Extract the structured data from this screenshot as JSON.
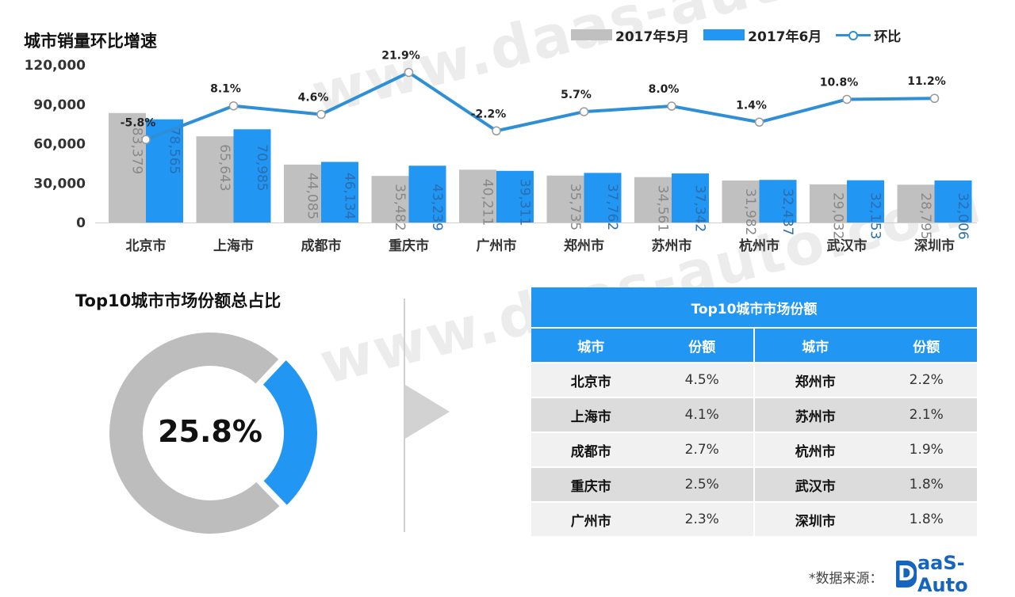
{
  "watermark": "www.daas-auto.com",
  "chart_data": [
    {
      "type": "bar",
      "title": "城市销量环比增速",
      "categories": [
        "北京市",
        "上海市",
        "成都市",
        "重庆市",
        "广州市",
        "郑州市",
        "苏州市",
        "杭州市",
        "武汉市",
        "深圳市"
      ],
      "series": [
        {
          "name": "2017年5月",
          "type": "bar",
          "color": "#c0c0c0",
          "values": [
            83379,
            65643,
            44085,
            35482,
            40211,
            35735,
            34561,
            31982,
            29032,
            28795
          ],
          "labels": [
            "83,379",
            "65,643",
            "44,085",
            "35,482",
            "40,211",
            "35,735",
            "34,561",
            "31,982",
            "29,032",
            "28,795"
          ]
        },
        {
          "name": "2017年6月",
          "type": "bar",
          "color": "#2196f3",
          "values": [
            78565,
            70985,
            46134,
            43239,
            39311,
            37762,
            37342,
            32437,
            32153,
            32006
          ],
          "labels": [
            "78,565",
            "70,985",
            "46,134",
            "43,239",
            "39,311",
            "37,762",
            "37,342",
            "32,437",
            "32,153",
            "32,006"
          ]
        },
        {
          "name": "环比",
          "type": "line",
          "color": "#2e8fd6",
          "values": [
            -5.8,
            8.1,
            4.6,
            21.9,
            -2.2,
            5.7,
            8.0,
            1.4,
            10.8,
            11.2
          ],
          "labels": [
            "-5.8%",
            "8.1%",
            "4.6%",
            "21.9%",
            "-2.2%",
            "5.7%",
            "8.0%",
            "1.4%",
            "10.8%",
            "11.2%"
          ]
        }
      ],
      "ylim": [
        0,
        120000
      ],
      "yticks": [
        0,
        30000,
        60000,
        90000,
        120000
      ],
      "ytick_labels": [
        "0",
        "30,000",
        "60,000",
        "90,000",
        "120,000"
      ],
      "legend": "top-right",
      "grid": false
    },
    {
      "type": "pie",
      "title": "Top10城市市场份额总占比",
      "values": [
        25.8,
        74.2
      ],
      "center_label": "25.8%",
      "colors": [
        "#2196f3",
        "#bdbdbd"
      ]
    },
    {
      "type": "table",
      "title": "Top10城市市场份额",
      "columns": [
        "城市",
        "份额",
        "城市",
        "份额"
      ],
      "rows": [
        [
          "北京市",
          "4.5%",
          "郑州市",
          "2.2%"
        ],
        [
          "上海市",
          "4.1%",
          "苏州市",
          "2.1%"
        ],
        [
          "成都市",
          "2.7%",
          "杭州市",
          "1.9%"
        ],
        [
          "重庆市",
          "2.5%",
          "武汉市",
          "1.8%"
        ],
        [
          "广州市",
          "2.3%",
          "深圳市",
          "1.8%"
        ]
      ]
    }
  ],
  "footer": {
    "source_label": "*数据来源：",
    "logo_d": "D",
    "logo_rest": "aaS-Auto"
  }
}
